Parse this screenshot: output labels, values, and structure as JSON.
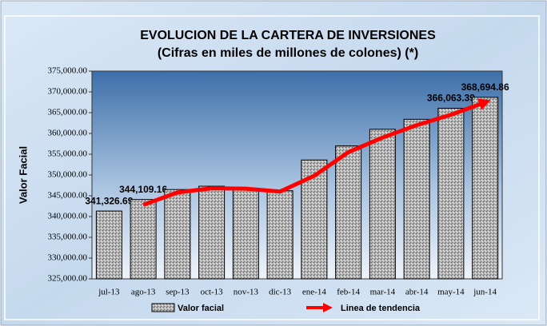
{
  "chart_data": {
    "type": "bar",
    "title": "EVOLUCION DE LA CARTERA DE INVERSIONES",
    "subtitle": "(Cifras en miles de millones de colones) (*)",
    "y_label": "Valor Facial",
    "categories": [
      "jul-13",
      "ago-13",
      "sep-13",
      "oct-13",
      "nov-13",
      "dic-13",
      "ene-14",
      "feb-14",
      "mar-14",
      "abr-14",
      "may-14",
      "jun-14"
    ],
    "series": [
      {
        "name": "Valor facial",
        "color": "#a8a8a8",
        "kind": "bar",
        "values": [
          341326.69,
          344109.16,
          346500,
          347300,
          346400,
          346200,
          353600,
          357000,
          361000,
          363400,
          366063.39,
          368694.86
        ],
        "value_labels": [
          "341,326.69",
          "344,109.16",
          null,
          null,
          null,
          null,
          null,
          null,
          null,
          null,
          "366,063.39",
          "368,694.86"
        ]
      },
      {
        "name": "Linea de tendencia",
        "color": "#ff0000",
        "kind": "line",
        "values": [
          null,
          342800,
          345800,
          346800,
          346700,
          346000,
          349800,
          355500,
          359000,
          362000,
          364500,
          367500
        ]
      }
    ],
    "ylim": [
      325000,
      375000
    ],
    "yticks": [
      {
        "value": 325000,
        "label": "325,000.00"
      },
      {
        "value": 330000,
        "label": "330,000.00"
      },
      {
        "value": 335000,
        "label": "335,000.00"
      },
      {
        "value": 340000,
        "label": "340,000.00"
      },
      {
        "value": 345000,
        "label": "345,000.00"
      },
      {
        "value": 350000,
        "label": "350,000.00"
      },
      {
        "value": 355000,
        "label": "355,000.00"
      },
      {
        "value": 360000,
        "label": "360,000.00"
      },
      {
        "value": 365000,
        "label": "365,000.00"
      },
      {
        "value": 370000,
        "label": "370,000.00"
      },
      {
        "value": 375000,
        "label": "375,000.00"
      }
    ]
  }
}
